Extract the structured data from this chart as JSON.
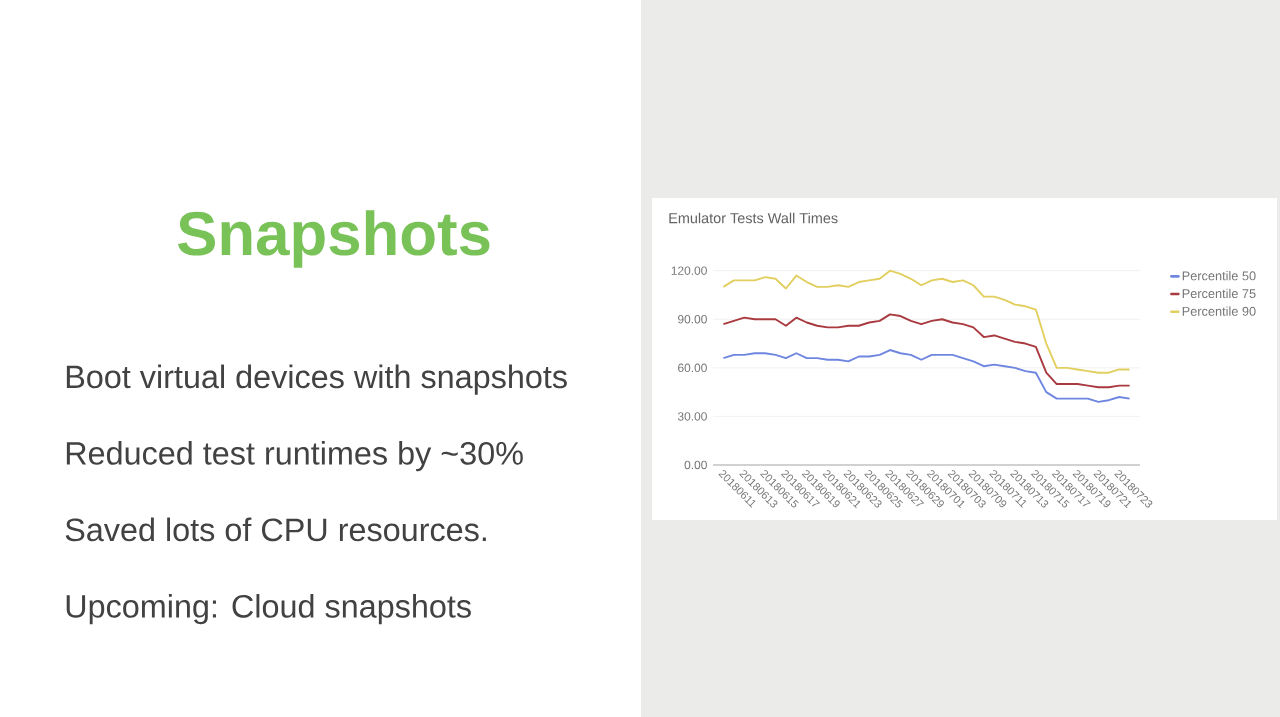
{
  "chart_data": {
    "type": "line",
    "title": "Emulator Tests Wall Times",
    "annotations": [
      "Snapshots",
      "Boot virtual devices with snapshots",
      "Reduced test runtimes by ~30%",
      "Saved lots of CPU resources.",
      "Upcoming: Cloud snapshots"
    ],
    "categories": [
      "20180611",
      null,
      "20180613",
      null,
      "20180615",
      null,
      "20180617",
      null,
      "20180619",
      null,
      "20180621",
      null,
      "20180623",
      null,
      "20180625",
      null,
      "20180627",
      null,
      "20180629",
      null,
      "20180701",
      null,
      "20180703",
      null,
      "20180709",
      null,
      "20180711",
      null,
      "20180713",
      null,
      "20180715",
      null,
      "20180717",
      null,
      "20180719",
      null,
      "20180721",
      null,
      "20180723",
      null
    ],
    "series": [
      {
        "name": "Percentile 50",
        "color": "#6f86e0",
        "values": [
          66,
          68,
          68,
          69,
          69,
          68,
          66,
          69,
          66,
          66,
          65,
          65,
          64,
          67,
          67,
          68,
          71,
          69,
          68,
          65,
          68,
          68,
          68,
          66,
          64,
          61,
          62,
          61,
          60,
          58,
          57,
          45,
          41,
          41,
          41,
          41,
          39,
          40,
          42,
          41
        ]
      },
      {
        "name": "Percentile 75",
        "color": "#a93a3f",
        "values": [
          87,
          89,
          91,
          90,
          90,
          90,
          86,
          91,
          88,
          86,
          85,
          85,
          86,
          86,
          88,
          89,
          93,
          92,
          89,
          87,
          89,
          90,
          88,
          87,
          85,
          79,
          80,
          78,
          76,
          75,
          73,
          57,
          50,
          50,
          50,
          49,
          48,
          48,
          49,
          49
        ]
      },
      {
        "name": "Percentile 90",
        "color": "#e2cf5f",
        "values": [
          110,
          114,
          114,
          114,
          116,
          115,
          109,
          117,
          113,
          110,
          110,
          111,
          110,
          113,
          114,
          115,
          120,
          118,
          115,
          111,
          114,
          115,
          113,
          114,
          111,
          104,
          104,
          102,
          99,
          98,
          96,
          75,
          60,
          60,
          59,
          58,
          57,
          57,
          59,
          59
        ]
      }
    ],
    "ylim": [
      0,
      120
    ],
    "yticks": [
      {
        "value": 0,
        "label": "0.00"
      },
      {
        "value": 30,
        "label": "30.00"
      },
      {
        "value": 60,
        "label": "60.00"
      },
      {
        "value": 90,
        "label": "90.00"
      },
      {
        "value": 120,
        "label": "120.00"
      }
    ],
    "grid": "y",
    "legend": "top right"
  }
}
